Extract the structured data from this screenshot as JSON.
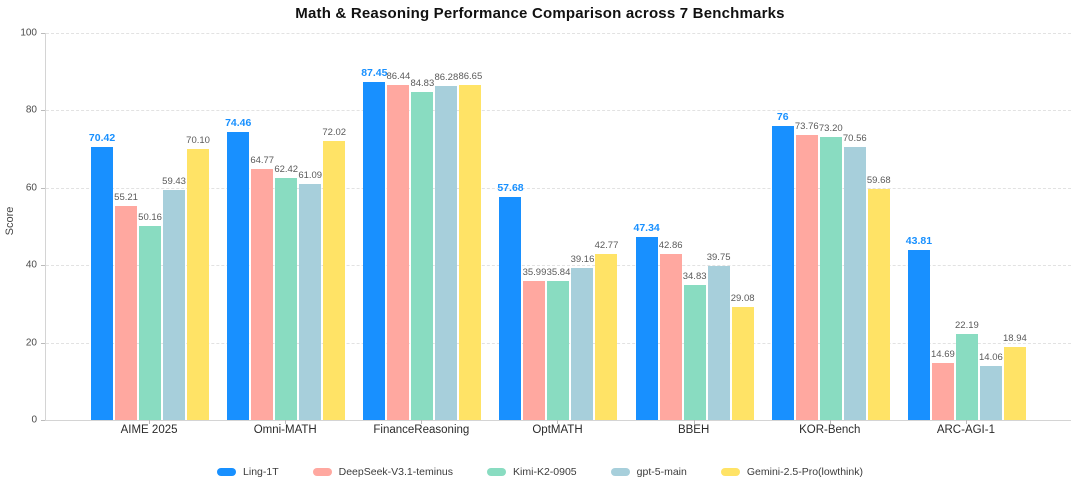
{
  "title": "Math & Reasoning Performance Comparison across 7 Benchmarks",
  "chart_data": {
    "type": "bar",
    "title": "Math & Reasoning Performance Comparison across 7 Benchmarks",
    "xlabel": "",
    "ylabel": "Score",
    "ylim": [
      0,
      100
    ],
    "yticks": [
      0,
      20,
      40,
      60,
      80,
      100
    ],
    "grid": "horizontal-dashed",
    "legend_position": "bottom",
    "categories": [
      "AIME 2025",
      "Omni-MATH",
      "FinanceReasoning",
      "OptMATH",
      "BBEH",
      "KOR-Bench",
      "ARC-AGI-1"
    ],
    "series": [
      {
        "name": "Ling-1T",
        "color": "#1890FF",
        "emphasized_labels": true,
        "values": [
          70.42,
          74.46,
          87.45,
          57.68,
          47.34,
          76,
          43.81
        ],
        "labels": [
          "70.42",
          "74.46",
          "87.45",
          "57.68",
          "47.34",
          "76",
          "43.81"
        ]
      },
      {
        "name": "DeepSeek-V3.1-teminus",
        "color": "#FFA8A0",
        "emphasized_labels": false,
        "values": [
          55.21,
          64.77,
          86.44,
          35.99,
          42.86,
          73.76,
          14.69
        ],
        "labels": [
          "55.21",
          "64.77",
          "86.44",
          "35.99",
          "42.86",
          "73.76",
          "14.69"
        ]
      },
      {
        "name": "Kimi-K2-0905",
        "color": "#89DCC1",
        "emphasized_labels": false,
        "values": [
          50.16,
          62.42,
          84.83,
          35.84,
          34.83,
          73.2,
          22.19
        ],
        "labels": [
          "50.16",
          "62.42",
          "84.83",
          "35.84",
          "34.83",
          "73.20",
          "22.19"
        ]
      },
      {
        "name": "gpt-5-main",
        "color": "#A7CFDB",
        "emphasized_labels": false,
        "values": [
          59.43,
          61.09,
          86.28,
          39.16,
          39.75,
          70.56,
          14.06
        ],
        "labels": [
          "59.43",
          "61.09",
          "86.28",
          "39.16",
          "39.75",
          "70.56",
          "14.06"
        ]
      },
      {
        "name": "Gemini-2.5-Pro(lowthink)",
        "color": "#FFE366",
        "emphasized_labels": false,
        "values": [
          70.1,
          72.02,
          86.65,
          42.77,
          29.08,
          59.68,
          18.94
        ],
        "labels": [
          "70.10",
          "72.02",
          "86.65",
          "42.77",
          "29.08",
          "59.68",
          "18.94"
        ]
      }
    ]
  }
}
